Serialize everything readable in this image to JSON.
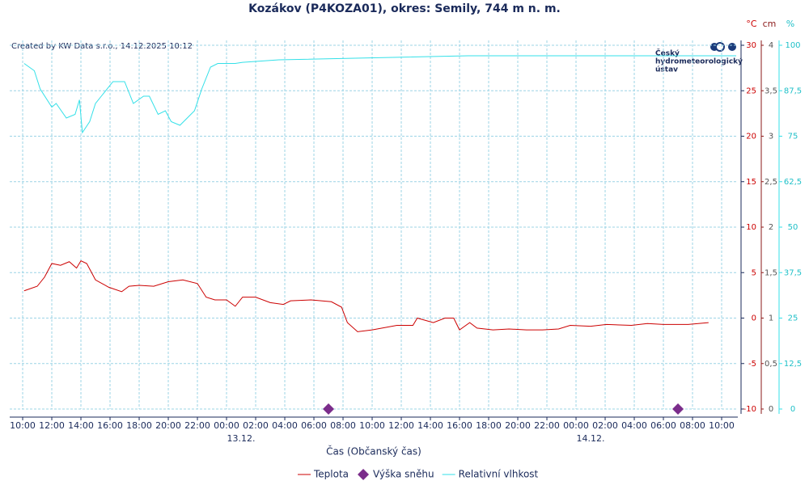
{
  "chart_data": {
    "type": "line",
    "title": "Kozákov (P4KOZA01), okres: Semily, 744 m n. m.",
    "subtitle": "Created by KW Data s.r.o., 14.12.2025 10:12",
    "logo": [
      "Český",
      "hydrometeorologický",
      "ústav"
    ],
    "x_label": "Čas (Občanský čas)",
    "y_unit": "°C",
    "y2_unit": "cm",
    "y3_unit": "%",
    "xlim": [
      9.11,
      59.11
    ],
    "xticks": [
      {
        "value": 10,
        "label": "10:00"
      },
      {
        "value": 12,
        "label": "12:00"
      },
      {
        "value": 14,
        "label": "14:00"
      },
      {
        "value": 16,
        "label": "16:00"
      },
      {
        "value": 18,
        "label": "18:00"
      },
      {
        "value": 20,
        "label": "20:00"
      },
      {
        "value": 22,
        "label": "22:00"
      },
      {
        "value": 24,
        "label": "00:00"
      },
      {
        "value": 26,
        "label": "02:00"
      },
      {
        "value": 28,
        "label": "04:00"
      },
      {
        "value": 30,
        "label": "06:00"
      },
      {
        "value": 32,
        "label": "08:00"
      },
      {
        "value": 34,
        "label": "10:00"
      },
      {
        "value": 36,
        "label": "12:00"
      },
      {
        "value": 38,
        "label": "14:00"
      },
      {
        "value": 40,
        "label": "16:00"
      },
      {
        "value": 42,
        "label": "18:00"
      },
      {
        "value": 44,
        "label": "20:00"
      },
      {
        "value": 46,
        "label": "22:00"
      },
      {
        "value": 48,
        "label": "00:00"
      },
      {
        "value": 50,
        "label": "02:00"
      },
      {
        "value": 52,
        "label": "04:00"
      },
      {
        "value": 54,
        "label": "06:00"
      },
      {
        "value": 56,
        "label": "08:00"
      },
      {
        "value": 58,
        "label": "10:00"
      }
    ],
    "date_labels": [
      {
        "value": 25,
        "label": "13.12."
      },
      {
        "value": 49,
        "label": "14.12."
      }
    ],
    "ylim": [
      -10,
      30
    ],
    "yticks": [
      -10,
      -5,
      0,
      5,
      10,
      15,
      20,
      25,
      30
    ],
    "y2lim": [
      0,
      4
    ],
    "y2ticks": [
      0,
      {
        "value": 0.5,
        "label": "0,5"
      },
      1,
      {
        "value": 1.5,
        "label": "1,5"
      },
      2,
      {
        "value": 2.5,
        "label": "2,5"
      },
      3,
      {
        "value": 3.5,
        "label": "3,5"
      },
      4
    ],
    "y3lim": [
      0,
      100
    ],
    "y3ticks": [
      0,
      {
        "value": 12.5,
        "label": "12,5"
      },
      25,
      {
        "value": 37.5,
        "label": "37,5"
      },
      50,
      {
        "value": 62.5,
        "label": "62,5"
      },
      75,
      {
        "value": 87.5,
        "label": "87,5"
      },
      100
    ],
    "grid": true,
    "series": [
      {
        "name": "Teplota",
        "color": "#cc0000",
        "axis": "y",
        "x": [
          10.1,
          11,
          11.5,
          12,
          12.6,
          13.2,
          13.7,
          14,
          14.4,
          15,
          15.9,
          16.8,
          17.3,
          18,
          19,
          20,
          21,
          22,
          22.6,
          23.2,
          24,
          24.6,
          25.1,
          26,
          27,
          27.9,
          28.4,
          29.8,
          31.2,
          31.9,
          32.3,
          33,
          34,
          35.7,
          36.8,
          37.1,
          38.2,
          39,
          39.6,
          40,
          40.7,
          41.2,
          42.3,
          43.4,
          44.6,
          45.7,
          46.8,
          47.6,
          49,
          50.1,
          51.8,
          52.9,
          54,
          55.7,
          57.1
        ],
        "values": [
          3,
          3.5,
          4.5,
          6,
          5.8,
          6.2,
          5.5,
          6.3,
          6,
          4.2,
          3.4,
          2.9,
          3.5,
          3.6,
          3.5,
          4,
          4.2,
          3.8,
          2.3,
          2,
          2,
          1.3,
          2.3,
          2.3,
          1.7,
          1.5,
          1.9,
          2,
          1.8,
          1.2,
          -0.5,
          -1.5,
          -1.3,
          -0.8,
          -0.8,
          0,
          -0.5,
          0,
          0,
          -1.3,
          -0.5,
          -1.1,
          -1.3,
          -1.2,
          -1.3,
          -1.3,
          -1.2,
          -0.8,
          -0.9,
          -0.7,
          -0.8,
          -0.6,
          -0.7,
          -0.7,
          -0.5
        ]
      },
      {
        "name": "Výška sněhu",
        "color": "#7b2d8b",
        "axis": "y2",
        "marker": "diamond",
        "x": [
          31,
          55
        ],
        "values": [
          0,
          0
        ]
      },
      {
        "name": "Relativní vlhkost",
        "color": "#33e0e8",
        "axis": "y3",
        "x": [
          10.1,
          10.8,
          11.2,
          12,
          12.3,
          13,
          13.6,
          13.9,
          14.1,
          14.6,
          15,
          15.4,
          16.2,
          17,
          17.6,
          18.3,
          18.7,
          19.3,
          19.8,
          20.2,
          20.8,
          21.3,
          21.8,
          22.3,
          22.9,
          23.4,
          24.6,
          25.1,
          27.6,
          40.6,
          59
        ],
        "values": [
          95,
          93,
          88,
          83,
          84,
          80,
          81,
          85,
          76,
          79,
          84,
          86,
          90,
          90,
          84,
          86,
          86,
          81,
          82,
          79,
          78,
          80,
          82,
          88,
          94,
          95,
          95,
          95.3,
          96,
          97.1,
          97.1
        ]
      }
    ],
    "legend": "bottom"
  }
}
